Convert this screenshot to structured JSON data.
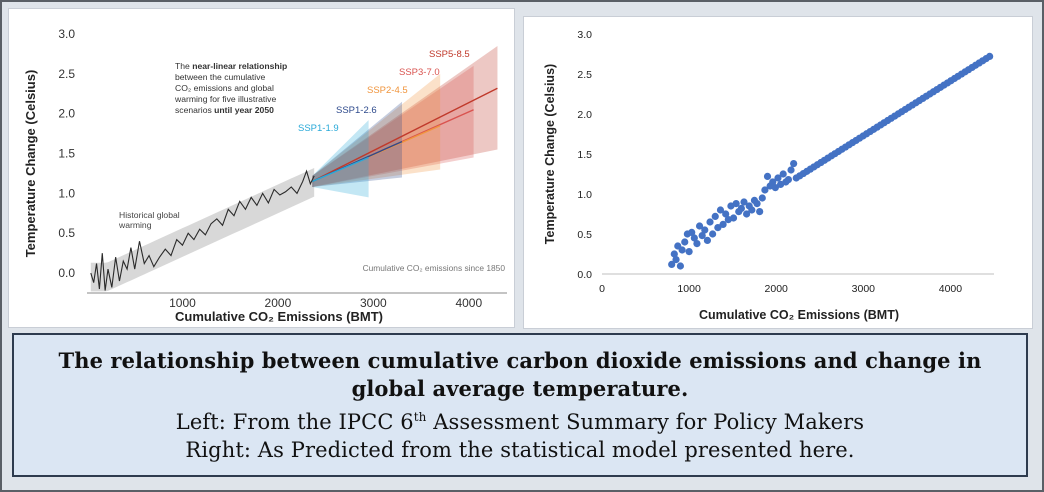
{
  "left_chart": {
    "ylabel": "Temperature Change (Celsius)",
    "xlabel": "Cumulative CO₂ Emissions (BMT)",
    "annotation_lines": [
      {
        "pre": "The ",
        "bold": "near-linear relationship",
        "post": ""
      },
      {
        "pre": "between the cumulative",
        "bold": "",
        "post": ""
      },
      {
        "pre": "CO₂ emissions and global",
        "bold": "",
        "post": ""
      },
      {
        "pre": "warming for five illustrative",
        "bold": "",
        "post": ""
      },
      {
        "pre": "scenarios ",
        "bold": "until year 2050",
        "post": ""
      }
    ],
    "historical_label_lines": [
      "Historical global",
      "warming"
    ],
    "note": "Cumulative CO₂ emissions since 1850",
    "scenario_labels": [
      {
        "name": "SSP5-8.5",
        "color": "#c0392b"
      },
      {
        "name": "SSP3-7.0",
        "color": "#d9534f"
      },
      {
        "name": "SSP2-4.5",
        "color": "#f0953d"
      },
      {
        "name": "SSP1-2.6",
        "color": "#2e4a8c"
      },
      {
        "name": "SSP1-1.9",
        "color": "#29a9d8"
      }
    ],
    "colors": {
      "historical_band": "#c8c8c8",
      "line": "#2a2a2a"
    }
  },
  "chart_data": [
    {
      "type": "line",
      "title": "",
      "xlabel": "Cumulative CO₂ Emissions (BMT)",
      "ylabel": "Temperature Change (Celsius)",
      "xlim": [
        0,
        4400
      ],
      "ylim": [
        -0.25,
        3.0
      ],
      "xticks": [
        1000,
        2000,
        3000,
        4000
      ],
      "yticks": [
        0.0,
        0.5,
        1.0,
        1.5,
        2.0,
        2.5,
        3.0
      ],
      "series": [
        {
          "name": "Historical global warming",
          "x": [
            40,
            70,
            100,
            130,
            160,
            190,
            220,
            260,
            300,
            340,
            380,
            420,
            460,
            500,
            550,
            600,
            650,
            700,
            760,
            820,
            880,
            940,
            1000,
            1060,
            1120,
            1180,
            1240,
            1300,
            1360,
            1420,
            1480,
            1540,
            1600,
            1660,
            1720,
            1780,
            1840,
            1900,
            1960,
            2020,
            2080,
            2140,
            2200,
            2260,
            2300,
            2340,
            2380
          ],
          "y": [
            0.0,
            -0.12,
            0.12,
            -0.2,
            0.25,
            -0.22,
            0.05,
            -0.18,
            0.2,
            -0.1,
            0.15,
            0.05,
            0.32,
            0.05,
            0.4,
            0.12,
            0.22,
            0.08,
            0.2,
            0.3,
            0.22,
            0.42,
            0.35,
            0.5,
            0.42,
            0.55,
            0.48,
            0.62,
            0.68,
            0.6,
            0.8,
            0.72,
            0.9,
            0.8,
            0.95,
            0.85,
            1.0,
            0.88,
            1.05,
            0.98,
            1.02,
            1.08,
            1.0,
            1.15,
            1.28,
            1.12,
            1.22
          ]
        }
      ],
      "scenarios": [
        {
          "name": "SSP1-1.9",
          "x_end": 2950,
          "y_start": 1.15,
          "y_end": 1.45,
          "lo_end": 0.95,
          "hi_end": 1.92
        },
        {
          "name": "SSP1-2.6",
          "x_end": 3300,
          "y_start": 1.15,
          "y_end": 1.65,
          "lo_end": 1.2,
          "hi_end": 2.15
        },
        {
          "name": "SSP2-4.5",
          "x_end": 3700,
          "y_start": 1.15,
          "y_end": 1.85,
          "lo_end": 1.3,
          "hi_end": 2.5
        },
        {
          "name": "SSP3-7.0",
          "x_end": 4050,
          "y_start": 1.15,
          "y_end": 2.05,
          "lo_end": 1.45,
          "hi_end": 2.6
        },
        {
          "name": "SSP5-8.5",
          "x_end": 4300,
          "y_start": 1.15,
          "y_end": 2.32,
          "lo_end": 1.55,
          "hi_end": 2.85
        }
      ]
    },
    {
      "type": "scatter",
      "title": "",
      "xlabel": "Cumulative CO₂ Emissions (BMT)",
      "ylabel": "Temperature Change (Celsius)",
      "xlim": [
        0,
        4500
      ],
      "ylim": [
        0.0,
        3.0
      ],
      "xticks": [
        0,
        1000,
        2000,
        3000,
        4000
      ],
      "yticks": [
        0.0,
        0.5,
        1.0,
        1.5,
        2.0,
        2.5,
        3.0
      ],
      "color": "#4472c4",
      "scatter_points": {
        "x": [
          800,
          830,
          850,
          870,
          900,
          920,
          950,
          980,
          1000,
          1030,
          1060,
          1090,
          1120,
          1150,
          1180,
          1210,
          1240,
          1270,
          1300,
          1330,
          1360,
          1390,
          1420,
          1450,
          1480,
          1510,
          1540,
          1570,
          1600,
          1630,
          1660,
          1690,
          1720,
          1750,
          1780,
          1810,
          1840,
          1870,
          1900,
          1930,
          1960,
          1990,
          2020,
          2050,
          2080,
          2110,
          2140,
          2170,
          2200
        ],
        "y": [
          0.12,
          0.25,
          0.18,
          0.35,
          0.1,
          0.3,
          0.4,
          0.5,
          0.28,
          0.52,
          0.45,
          0.38,
          0.6,
          0.48,
          0.55,
          0.42,
          0.65,
          0.5,
          0.72,
          0.58,
          0.8,
          0.62,
          0.75,
          0.68,
          0.85,
          0.7,
          0.88,
          0.78,
          0.82,
          0.9,
          0.75,
          0.85,
          0.8,
          0.92,
          0.88,
          0.78,
          0.95,
          1.05,
          1.22,
          1.1,
          1.15,
          1.08,
          1.2,
          1.12,
          1.25,
          1.15,
          1.18,
          1.3,
          1.38
        ]
      },
      "linear_points": {
        "x_start": 2230,
        "x_end": 4450,
        "y_start": 1.2,
        "y_end": 2.72,
        "count": 56
      }
    }
  ],
  "caption": {
    "line1": "The relationship between cumulative carbon dioxide emissions and change in",
    "line2": "global average temperature.",
    "line3_pre": "Left: From the IPCC 6",
    "line3_sup": "th",
    "line3_post": " Assessment Summary for Policy Makers",
    "line4": "Right: As Predicted from the statistical model presented here."
  }
}
